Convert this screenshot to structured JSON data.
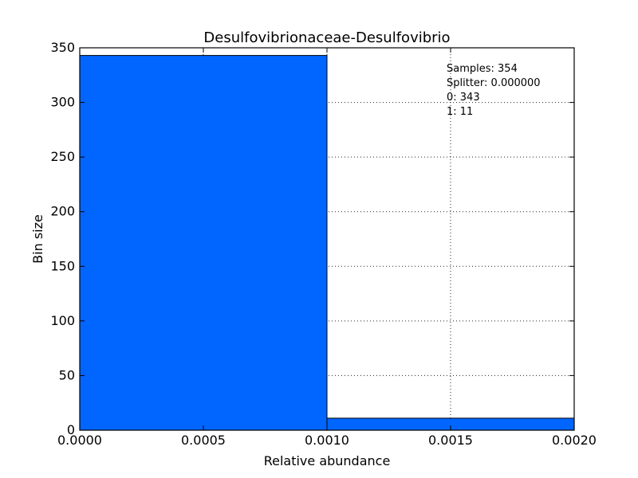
{
  "chart_data": {
    "type": "bar",
    "title": "Desulfovibrionaceae-Desulfovibrio",
    "xlabel": "Relative abundance",
    "ylabel": "Bin size",
    "bins": [
      {
        "x_start": 0.0,
        "x_end": 0.001,
        "value": 343
      },
      {
        "x_start": 0.001,
        "x_end": 0.002,
        "value": 11
      }
    ],
    "xlim": [
      0.0,
      0.002
    ],
    "ylim": [
      0,
      350
    ],
    "x_ticks": [
      "0.0000",
      "0.0005",
      "0.0010",
      "0.0015",
      "0.0020"
    ],
    "x_tick_values": [
      0.0,
      0.0005,
      0.001,
      0.0015,
      0.002
    ],
    "y_ticks": [
      "0",
      "50",
      "100",
      "150",
      "200",
      "250",
      "300",
      "350"
    ],
    "y_tick_values": [
      0,
      50,
      100,
      150,
      200,
      250,
      300,
      350
    ],
    "grid": true,
    "bar_color": "#0066ff",
    "annotations": [
      "Samples: 354",
      "Splitter: 0.000000",
      "0: 343",
      "1: 11"
    ]
  }
}
